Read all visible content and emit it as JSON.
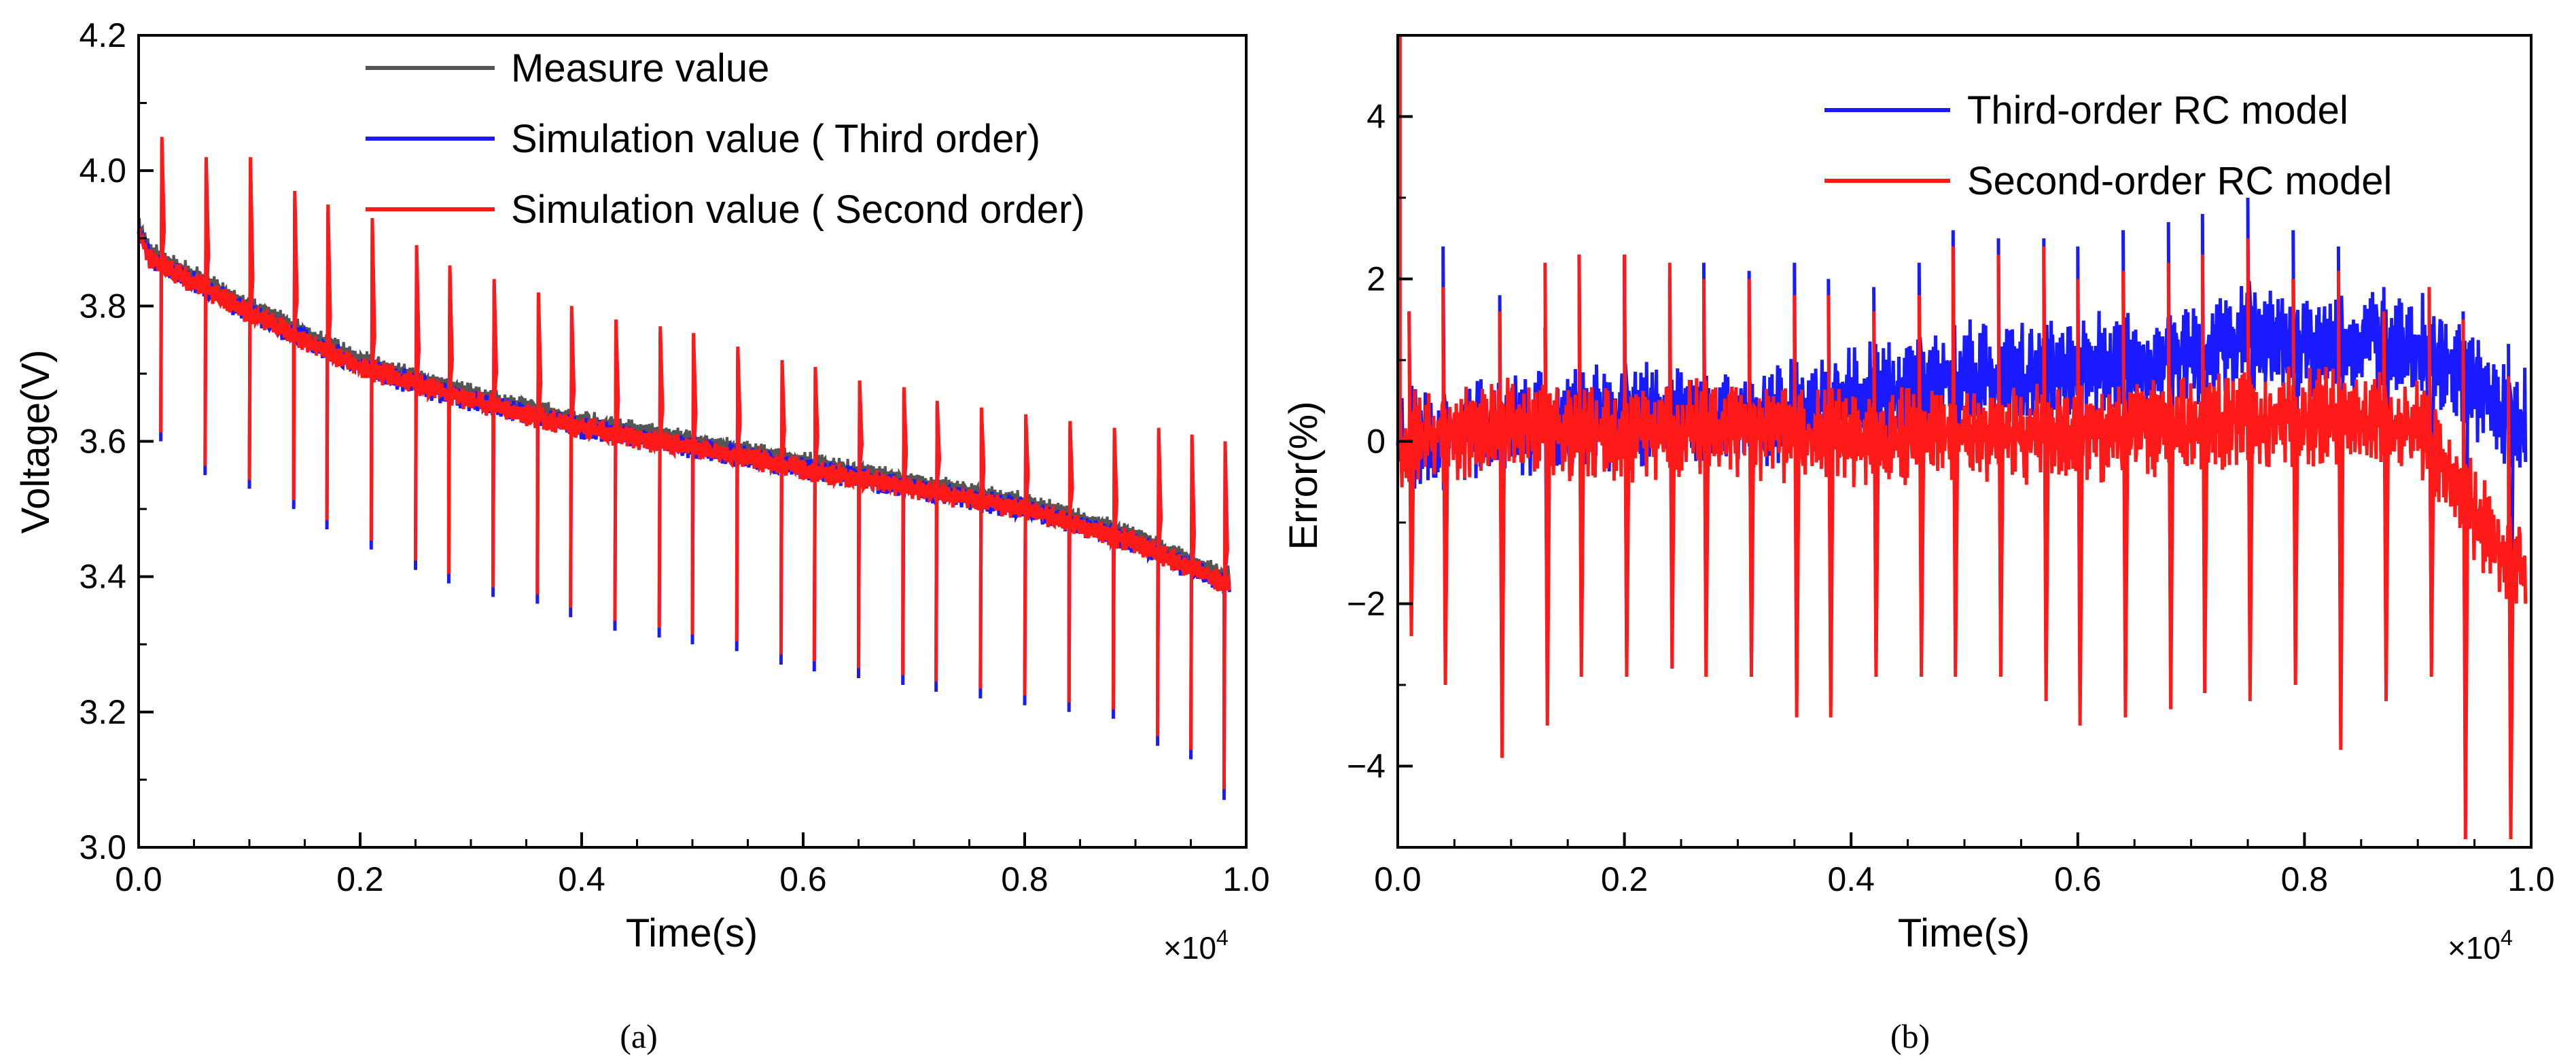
{
  "chart_data": [
    {
      "type": "line",
      "caption": "(a)",
      "xlabel": "Time(s)",
      "ylabel": "Voltage(V)",
      "x_multiplier": "×10",
      "x_multiplier_exp": "4",
      "xlim": [
        0.0,
        1.0
      ],
      "ylim": [
        3.0,
        4.2
      ],
      "xticks": [
        "0.0",
        "0.2",
        "0.4",
        "0.6",
        "0.8",
        "1.0"
      ],
      "yticks": [
        "3.0",
        "3.2",
        "3.4",
        "3.6",
        "3.8",
        "4.0",
        "4.2"
      ],
      "legend_position": "top-center",
      "series": [
        {
          "name": "Measure value",
          "color": "#555555",
          "x": [
            0,
            0.01,
            0.1,
            0.2,
            0.3,
            0.4,
            0.5,
            0.6,
            0.7,
            0.8,
            0.9,
            0.98
          ],
          "y": [
            3.92,
            3.88,
            3.8,
            3.72,
            3.67,
            3.63,
            3.6,
            3.57,
            3.54,
            3.51,
            3.46,
            3.4
          ]
        },
        {
          "name": "Simulation value ( Third order)",
          "color": "#1a1aff",
          "x": [
            0,
            0.01,
            0.1,
            0.2,
            0.3,
            0.4,
            0.5,
            0.6,
            0.7,
            0.8,
            0.9,
            0.98
          ],
          "y": [
            3.91,
            3.87,
            3.79,
            3.71,
            3.66,
            3.62,
            3.59,
            3.56,
            3.53,
            3.5,
            3.45,
            3.39
          ]
        },
        {
          "name": "Simulation value ( Second order)",
          "color": "#ff1a1a",
          "x": [
            0,
            0.01,
            0.1,
            0.2,
            0.3,
            0.4,
            0.5,
            0.6,
            0.7,
            0.8,
            0.9,
            0.98
          ],
          "y": [
            3.91,
            3.87,
            3.79,
            3.71,
            3.66,
            3.62,
            3.59,
            3.56,
            3.53,
            3.5,
            3.45,
            3.39
          ]
        }
      ],
      "spikes": {
        "x": [
          0.02,
          0.06,
          0.1,
          0.14,
          0.17,
          0.21,
          0.25,
          0.28,
          0.32,
          0.36,
          0.39,
          0.43,
          0.47,
          0.5,
          0.54,
          0.58,
          0.61,
          0.65,
          0.69,
          0.72,
          0.76,
          0.8,
          0.84,
          0.88,
          0.92,
          0.95,
          0.98
        ],
        "peak": [
          4.05,
          4.02,
          4.02,
          3.97,
          3.95,
          3.93,
          3.89,
          3.86,
          3.84,
          3.82,
          3.8,
          3.78,
          3.77,
          3.76,
          3.74,
          3.72,
          3.71,
          3.69,
          3.68,
          3.66,
          3.65,
          3.64,
          3.63,
          3.62,
          3.62,
          3.61,
          3.6
        ],
        "dip": [
          3.6,
          3.55,
          3.53,
          3.5,
          3.47,
          3.44,
          3.41,
          3.39,
          3.37,
          3.36,
          3.34,
          3.32,
          3.31,
          3.3,
          3.29,
          3.27,
          3.26,
          3.25,
          3.24,
          3.23,
          3.22,
          3.21,
          3.2,
          3.19,
          3.15,
          3.13,
          3.07
        ]
      }
    },
    {
      "type": "line",
      "caption": "(b)",
      "xlabel": "Time(s)",
      "ylabel": "Error(%)",
      "x_multiplier": "×10",
      "x_multiplier_exp": "4",
      "xlim": [
        0.0,
        1.0
      ],
      "ylim": [
        -5,
        5
      ],
      "xticks": [
        "0.0",
        "0.2",
        "0.4",
        "0.6",
        "0.8",
        "1.0"
      ],
      "yticks": [
        "-4",
        "-2",
        "0",
        "2",
        "4"
      ],
      "ytick_values": [
        -4,
        -2,
        0,
        2,
        4
      ],
      "legend_position": "top-right",
      "series": [
        {
          "name": "Third-order RC model",
          "color": "#1a1aff",
          "x": [
            0,
            0.1,
            0.2,
            0.3,
            0.4,
            0.5,
            0.6,
            0.7,
            0.75,
            0.8,
            0.9,
            0.98
          ],
          "y": [
            0.0,
            0.2,
            0.3,
            0.3,
            0.5,
            0.8,
            0.9,
            1.0,
            1.3,
            1.2,
            1.2,
            0.3
          ]
        },
        {
          "name": "Second-order RC model",
          "color": "#ff1a1a",
          "x": [
            0,
            0.1,
            0.2,
            0.3,
            0.4,
            0.5,
            0.6,
            0.7,
            0.8,
            0.9,
            0.98
          ],
          "y": [
            0.0,
            0.2,
            0.1,
            0.2,
            0.0,
            0.1,
            0.1,
            0.2,
            0.3,
            0.2,
            -1.5
          ]
        }
      ],
      "spikes": {
        "x": [
          0.01,
          0.04,
          0.09,
          0.13,
          0.16,
          0.2,
          0.24,
          0.27,
          0.31,
          0.35,
          0.38,
          0.42,
          0.46,
          0.49,
          0.53,
          0.57,
          0.6,
          0.64,
          0.68,
          0.71,
          0.75,
          0.79,
          0.83,
          0.87,
          0.91,
          0.94,
          0.98
        ],
        "peak_blue": [
          1.6,
          2.4,
          1.8,
          1.4,
          2.3,
          2.3,
          2.0,
          2.2,
          2.1,
          2.2,
          2.0,
          1.9,
          2.2,
          2.6,
          2.5,
          2.5,
          2.4,
          2.6,
          2.7,
          2.8,
          3.0,
          2.6,
          2.4,
          1.9,
          1.6,
          1.6,
          1.2
        ],
        "peak_red": [
          1.6,
          1.9,
          1.6,
          2.2,
          2.3,
          2.3,
          2.2,
          2.0,
          2.0,
          1.8,
          1.8,
          1.6,
          1.8,
          2.4,
          2.3,
          2.4,
          2.0,
          2.1,
          2.2,
          2.3,
          2.5,
          2.0,
          2.1,
          1.6,
          1.9,
          1.5,
          0.8
        ],
        "dip": [
          -2.4,
          -3.0,
          -3.9,
          -3.5,
          -2.9,
          -2.9,
          -2.8,
          -2.9,
          -2.9,
          -3.4,
          -3.4,
          -2.9,
          -2.9,
          -2.9,
          -2.9,
          -3.2,
          -3.5,
          -3.4,
          -3.3,
          -3.1,
          -3.2,
          -3.0,
          -3.8,
          -3.2,
          -2.9,
          -4.9,
          -4.9
        ]
      }
    }
  ]
}
